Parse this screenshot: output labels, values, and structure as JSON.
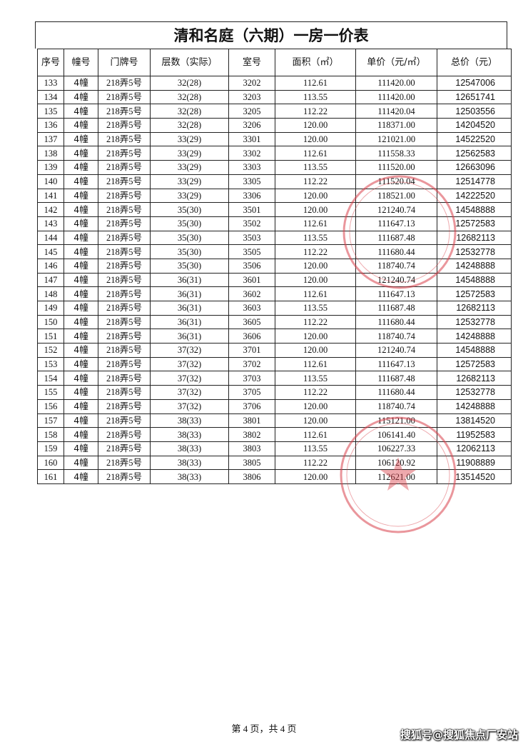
{
  "document": {
    "title": "清和名庭（六期）一房一价表",
    "table": {
      "header": [
        "序号",
        "幢号",
        "门牌号",
        "层数（实际）",
        "室号",
        "面积（㎡）",
        "单价（元/㎡）",
        "总价（元）"
      ],
      "rows": [
        [
          "133",
          "4幢",
          "218弄5号",
          "32(28)",
          "3202",
          "112.61",
          "111420.00",
          "12547006"
        ],
        [
          "134",
          "4幢",
          "218弄5号",
          "32(28)",
          "3203",
          "113.55",
          "111420.00",
          "12651741"
        ],
        [
          "135",
          "4幢",
          "218弄5号",
          "32(28)",
          "3205",
          "112.22",
          "111420.04",
          "12503556"
        ],
        [
          "136",
          "4幢",
          "218弄5号",
          "32(28)",
          "3206",
          "120.00",
          "118371.00",
          "14204520"
        ],
        [
          "137",
          "4幢",
          "218弄5号",
          "33(29)",
          "3301",
          "120.00",
          "121021.00",
          "14522520"
        ],
        [
          "138",
          "4幢",
          "218弄5号",
          "33(29)",
          "3302",
          "112.61",
          "111558.33",
          "12562583"
        ],
        [
          "139",
          "4幢",
          "218弄5号",
          "33(29)",
          "3303",
          "113.55",
          "111520.00",
          "12663096"
        ],
        [
          "140",
          "4幢",
          "218弄5号",
          "33(29)",
          "3305",
          "112.22",
          "111520.04",
          "12514778"
        ],
        [
          "141",
          "4幢",
          "218弄5号",
          "33(29)",
          "3306",
          "120.00",
          "118521.00",
          "14222520"
        ],
        [
          "142",
          "4幢",
          "218弄5号",
          "35(30)",
          "3501",
          "120.00",
          "121240.74",
          "14548888"
        ],
        [
          "143",
          "4幢",
          "218弄5号",
          "35(30)",
          "3502",
          "112.61",
          "111647.13",
          "12572583"
        ],
        [
          "144",
          "4幢",
          "218弄5号",
          "35(30)",
          "3503",
          "113.55",
          "111687.48",
          "12682113"
        ],
        [
          "145",
          "4幢",
          "218弄5号",
          "35(30)",
          "3505",
          "112.22",
          "111680.44",
          "12532778"
        ],
        [
          "146",
          "4幢",
          "218弄5号",
          "35(30)",
          "3506",
          "120.00",
          "118740.74",
          "14248888"
        ],
        [
          "147",
          "4幢",
          "218弄5号",
          "36(31)",
          "3601",
          "120.00",
          "121240.74",
          "14548888"
        ],
        [
          "148",
          "4幢",
          "218弄5号",
          "36(31)",
          "3602",
          "112.61",
          "111647.13",
          "12572583"
        ],
        [
          "149",
          "4幢",
          "218弄5号",
          "36(31)",
          "3603",
          "113.55",
          "111687.48",
          "12682113"
        ],
        [
          "150",
          "4幢",
          "218弄5号",
          "36(31)",
          "3605",
          "112.22",
          "111680.44",
          "12532778"
        ],
        [
          "151",
          "4幢",
          "218弄5号",
          "36(31)",
          "3606",
          "120.00",
          "118740.74",
          "14248888"
        ],
        [
          "152",
          "4幢",
          "218弄5号",
          "37(32)",
          "3701",
          "120.00",
          "121240.74",
          "14548888"
        ],
        [
          "153",
          "4幢",
          "218弄5号",
          "37(32)",
          "3702",
          "112.61",
          "111647.13",
          "12572583"
        ],
        [
          "154",
          "4幢",
          "218弄5号",
          "37(32)",
          "3703",
          "113.55",
          "111687.48",
          "12682113"
        ],
        [
          "155",
          "4幢",
          "218弄5号",
          "37(32)",
          "3705",
          "112.22",
          "111680.44",
          "12532778"
        ],
        [
          "156",
          "4幢",
          "218弄5号",
          "37(32)",
          "3706",
          "120.00",
          "118740.74",
          "14248888"
        ],
        [
          "157",
          "4幢",
          "218弄5号",
          "38(33)",
          "3801",
          "120.00",
          "115121.00",
          "13814520"
        ],
        [
          "158",
          "4幢",
          "218弄5号",
          "38(33)",
          "3802",
          "112.61",
          "106141.40",
          "11952583"
        ],
        [
          "159",
          "4幢",
          "218弄5号",
          "38(33)",
          "3803",
          "113.55",
          "106227.33",
          "12062113"
        ],
        [
          "160",
          "4幢",
          "218弄5号",
          "38(33)",
          "3805",
          "112.22",
          "106120.92",
          "11908889"
        ],
        [
          "161",
          "4幢",
          "218弄5号",
          "38(33)",
          "3806",
          "120.00",
          "112621.00",
          "13514520"
        ]
      ]
    },
    "footer": "第 4 页，共 4 页",
    "watermark": "搜狐号@搜狐焦点厂安站"
  }
}
